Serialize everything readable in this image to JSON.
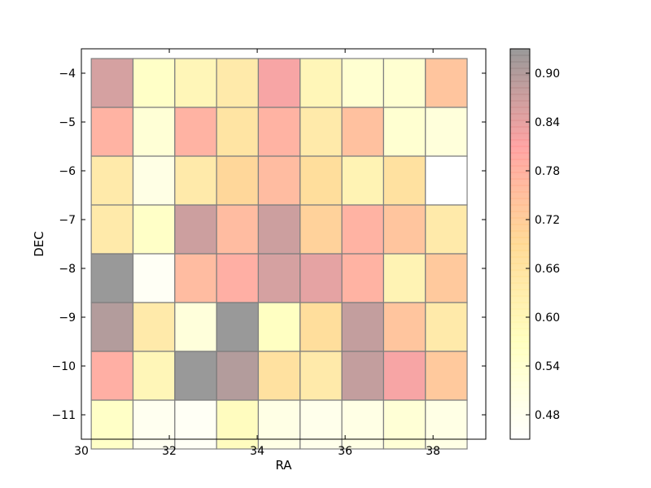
{
  "chart_data": {
    "type": "heatmap",
    "xlabel": "RA",
    "ylabel": "DEC",
    "xlim": [
      30,
      39.2
    ],
    "ylim": [
      -11.5,
      -3.5
    ],
    "x_ticks": [
      "30",
      "32",
      "34",
      "36",
      "38"
    ],
    "x_tick_values": [
      30,
      32,
      34,
      36,
      38
    ],
    "y_ticks": [
      "−4",
      "−5",
      "−6",
      "−7",
      "−8",
      "−9",
      "−10",
      "−11"
    ],
    "y_tick_values": [
      -4,
      -5,
      -6,
      -7,
      -8,
      -9,
      -10,
      -11
    ],
    "cell_ra_centers": [
      30.7,
      31.65,
      32.6,
      33.55,
      34.5,
      35.45,
      36.4,
      37.35,
      38.3
    ],
    "cell_dec_centers": [
      -4.2,
      -5.2,
      -6.2,
      -7.2,
      -8.2,
      -9.2,
      -10.2,
      -11.2
    ],
    "cell_width": 0.95,
    "cell_height": 1.0,
    "values": [
      [
        0.86,
        0.56,
        0.6,
        0.64,
        0.82,
        0.6,
        0.54,
        0.54,
        0.74
      ],
      [
        0.78,
        0.53,
        0.78,
        0.66,
        0.78,
        0.64,
        0.75,
        0.54,
        0.52
      ],
      [
        0.64,
        0.5,
        0.64,
        0.7,
        0.76,
        0.68,
        0.61,
        0.67,
        0.45
      ],
      [
        0.64,
        0.56,
        0.87,
        0.76,
        0.87,
        0.71,
        0.78,
        0.74,
        0.64
      ],
      [
        0.93,
        0.47,
        0.76,
        0.79,
        0.86,
        0.84,
        0.78,
        0.61,
        0.73
      ],
      [
        0.9,
        0.64,
        0.52,
        0.93,
        0.57,
        0.68,
        0.88,
        0.74,
        0.64
      ],
      [
        0.79,
        0.6,
        0.93,
        0.9,
        0.67,
        0.64,
        0.88,
        0.82,
        0.73
      ],
      [
        0.56,
        0.48,
        0.47,
        0.58,
        0.5,
        0.49,
        0.5,
        0.53,
        0.5
      ]
    ],
    "colorbar": {
      "range": [
        0.45,
        0.93
      ],
      "tick_values": [
        0.48,
        0.54,
        0.6,
        0.66,
        0.72,
        0.78,
        0.84,
        0.9
      ],
      "tick_labels": [
        "0.48",
        "0.54",
        "0.60",
        "0.66",
        "0.72",
        "0.78",
        "0.84",
        "0.90"
      ]
    },
    "colormap": [
      "#ffffff",
      "#ffff66",
      "#ffa500",
      "#ff2020",
      "#000000"
    ],
    "cell_alpha": 0.4,
    "cell_edge_color": "#808080",
    "grid": false,
    "legend": "none"
  }
}
